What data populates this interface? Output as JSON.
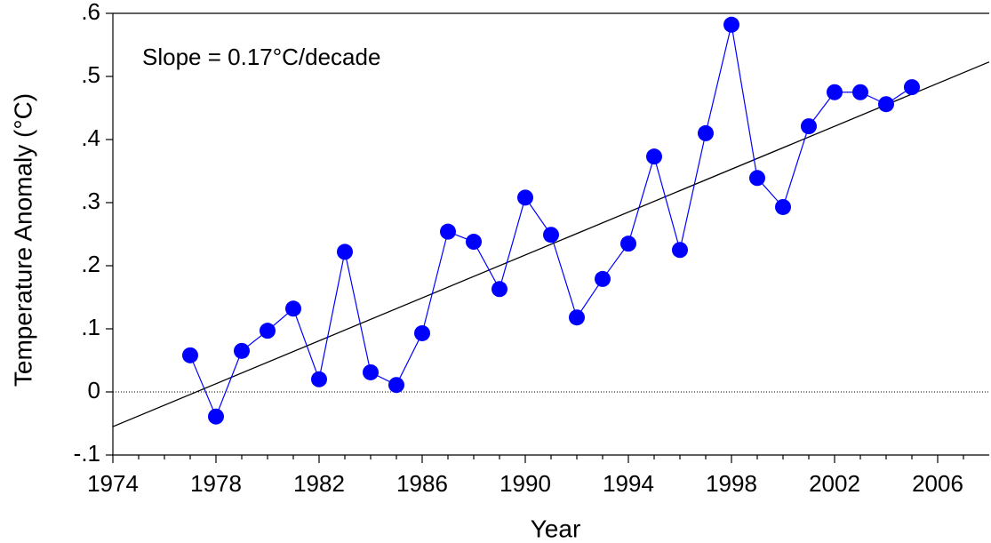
{
  "chart_data": {
    "type": "line",
    "annotation": "Slope = 0.17°C/decade",
    "xlabel": "Year",
    "ylabel": "Temperature Anomaly (°C)",
    "x": [
      1977,
      1978,
      1979,
      1980,
      1981,
      1982,
      1983,
      1984,
      1985,
      1986,
      1987,
      1988,
      1989,
      1990,
      1991,
      1992,
      1993,
      1994,
      1995,
      1996,
      1997,
      1998,
      1999,
      2000,
      2001,
      2002,
      2003,
      2004,
      2005
    ],
    "series": [
      {
        "color": "#0000ff",
        "values": [
          0.058,
          -0.039,
          0.065,
          0.097,
          0.132,
          0.02,
          0.222,
          0.031,
          0.011,
          0.093,
          0.254,
          0.238,
          0.163,
          0.308,
          0.249,
          0.118,
          0.179,
          0.235,
          0.373,
          0.225,
          0.41,
          0.582,
          0.339,
          0.293,
          0.421,
          0.475,
          0.475,
          0.456,
          0.483
        ]
      }
    ],
    "trend": {
      "x": [
        1974,
        2008
      ],
      "values": [
        -0.055,
        0.523
      ],
      "color": "#000000"
    },
    "reference_line": 0,
    "xlim": [
      1974,
      2008
    ],
    "xticks": [
      1974,
      1978,
      1982,
      1986,
      1990,
      1994,
      1998,
      2002,
      2006
    ],
    "xminorticks": [
      1975,
      1976,
      1977,
      1979,
      1980,
      1981,
      1983,
      1984,
      1985,
      1987,
      1988,
      1989,
      1991,
      1992,
      1993,
      1995,
      1996,
      1997,
      1999,
      2000,
      2001,
      2003,
      2004,
      2005,
      2007
    ],
    "ylim": [
      -0.1,
      0.6
    ],
    "yticks": [
      {
        "value": -0.1,
        "label": "-.1"
      },
      0,
      {
        "value": 0.1,
        "label": ".1"
      },
      {
        "value": 0.2,
        "label": ".2"
      },
      {
        "value": 0.3,
        "label": ".3"
      },
      {
        "value": 0.4,
        "label": ".4"
      },
      {
        "value": 0.5,
        "label": ".5"
      },
      {
        "value": 0.6,
        "label": ".6"
      }
    ],
    "grid": false
  }
}
